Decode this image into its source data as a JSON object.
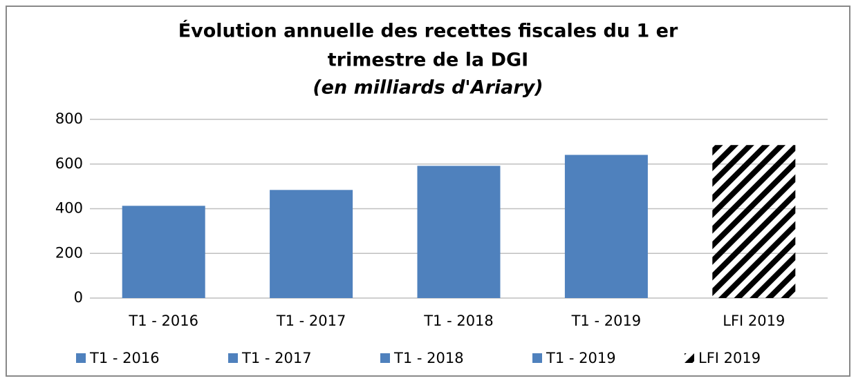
{
  "chart_data": {
    "type": "bar",
    "title": [
      "Évolution annuelle des recettes fiscales  du   1 er",
      "trimestre de la DGI"
    ],
    "subtitle": "(en milliards d'Ariary)",
    "categories": [
      "T1 - 2016",
      "T1 - 2017",
      "T1 - 2018",
      "T1 - 2019",
      "LFI 2019"
    ],
    "values": [
      413,
      484,
      592,
      641,
      685
    ],
    "colors": [
      "#4f81bd",
      "#4f81bd",
      "#4f81bd",
      "#4f81bd",
      "#ff0000"
    ],
    "patterns": [
      "solid",
      "solid",
      "solid",
      "solid",
      "hatch"
    ],
    "ylim": [
      0,
      800
    ],
    "yticks": [
      0,
      200,
      400,
      600,
      800
    ],
    "grid": true,
    "legend": "bottom"
  }
}
